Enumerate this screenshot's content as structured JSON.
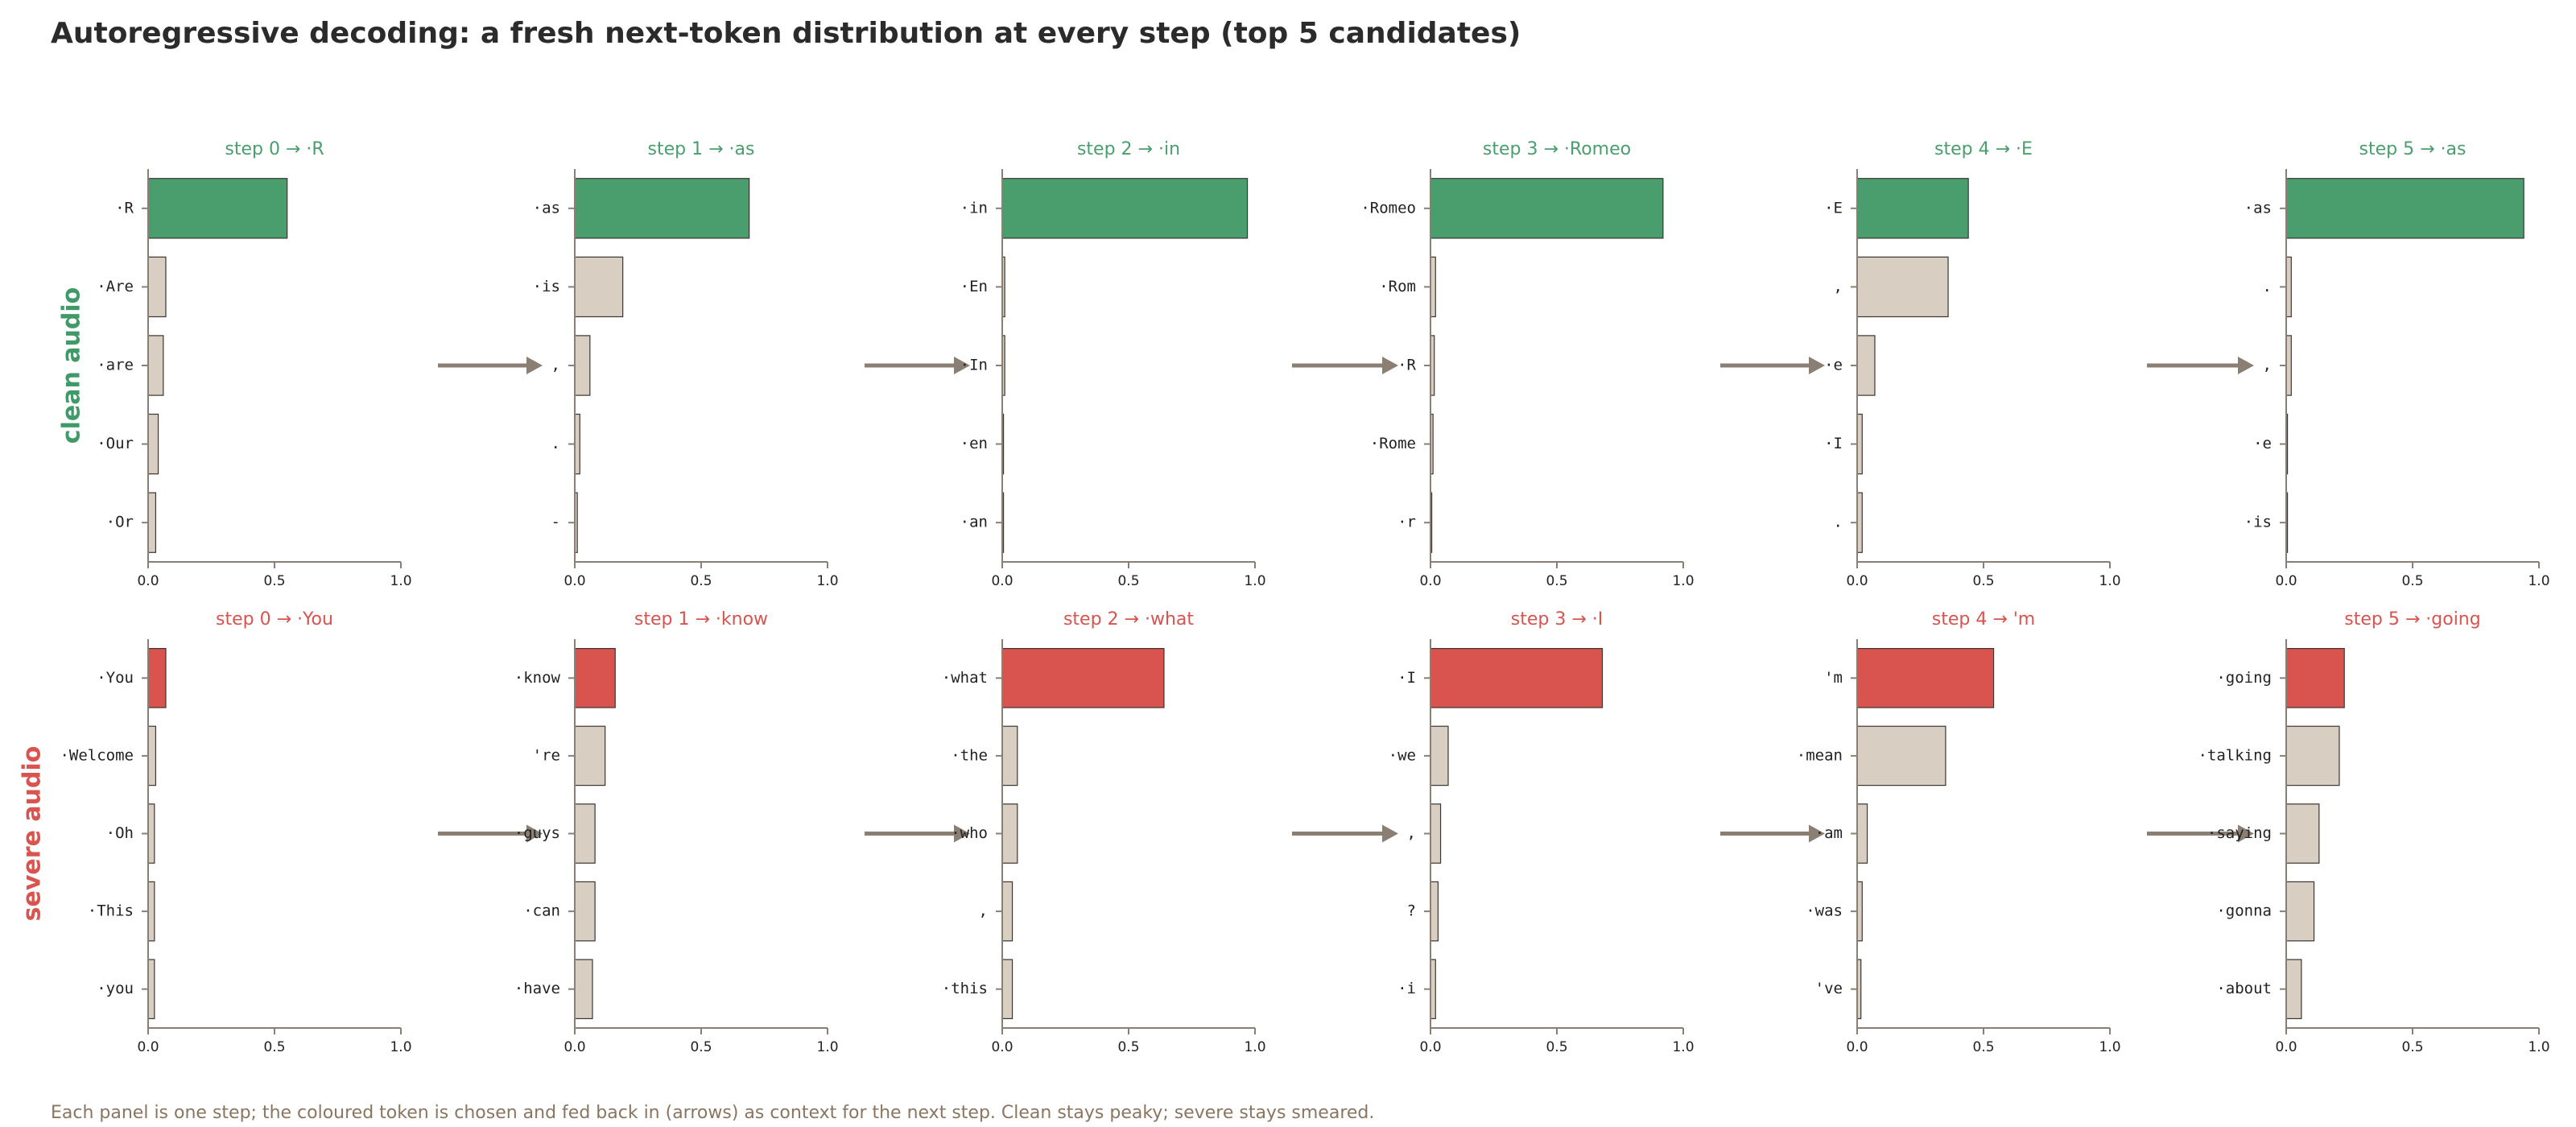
{
  "title": "Autoregressive decoding: a fresh next-token distribution at every step (top 5 candidates)",
  "footnote": "Each panel is one step; the coloured token is chosen and fed back in (arrows) as context for the next step. Clean stays peaky; severe stays smeared.",
  "rows": [
    {
      "label": "clean audio",
      "color": "#3f9a68"
    },
    {
      "label": "severe audio",
      "color": "#d9534f"
    }
  ],
  "chart_data": [
    {
      "type": "barh",
      "title": "step 0  → ·R",
      "categories": [
        "·R",
        "·Are",
        "·are",
        "·Our",
        "·Or"
      ],
      "values": [
        0.55,
        0.07,
        0.06,
        0.04,
        0.03
      ],
      "highlight_color": "#4a9e6e",
      "color": "#d8cfc2",
      "xlim": [
        0,
        1
      ],
      "xticks": [
        {
          "value": 0,
          "label": "0.0"
        },
        {
          "value": 0.5,
          "label": "0.5"
        },
        {
          "value": 1,
          "label": "1.0"
        }
      ]
    },
    {
      "type": "barh",
      "title": "step 1  → ·as",
      "categories": [
        "·as",
        "·is",
        ",",
        ".",
        "-"
      ],
      "values": [
        0.69,
        0.19,
        0.06,
        0.02,
        0.01
      ],
      "highlight_color": "#4a9e6e",
      "color": "#d8cfc2",
      "xlim": [
        0,
        1
      ],
      "xticks": [
        {
          "value": 0,
          "label": "0.0"
        },
        {
          "value": 0.5,
          "label": "0.5"
        },
        {
          "value": 1,
          "label": "1.0"
        }
      ]
    },
    {
      "type": "barh",
      "title": "step 2  → ·in",
      "categories": [
        "·in",
        "·En",
        "·In",
        "·en",
        "·an"
      ],
      "values": [
        0.97,
        0.01,
        0.01,
        0.005,
        0.005
      ],
      "highlight_color": "#4a9e6e",
      "color": "#d8cfc2",
      "xlim": [
        0,
        1
      ],
      "xticks": [
        {
          "value": 0,
          "label": "0.0"
        },
        {
          "value": 0.5,
          "label": "0.5"
        },
        {
          "value": 1,
          "label": "1.0"
        }
      ]
    },
    {
      "type": "barh",
      "title": "step 3  → ·Romeo",
      "categories": [
        "·Romeo",
        "·Rom",
        "·R",
        "·Rome",
        "·r"
      ],
      "values": [
        0.92,
        0.02,
        0.015,
        0.01,
        0.005
      ],
      "highlight_color": "#4a9e6e",
      "color": "#d8cfc2",
      "xlim": [
        0,
        1
      ],
      "xticks": [
        {
          "value": 0,
          "label": "0.0"
        },
        {
          "value": 0.5,
          "label": "0.5"
        },
        {
          "value": 1,
          "label": "1.0"
        }
      ]
    },
    {
      "type": "barh",
      "title": "step 4  → ·E",
      "categories": [
        "·E",
        ",",
        "·e",
        "·I",
        "."
      ],
      "values": [
        0.44,
        0.36,
        0.07,
        0.02,
        0.02
      ],
      "highlight_color": "#4a9e6e",
      "color": "#d8cfc2",
      "xlim": [
        0,
        1
      ],
      "xticks": [
        {
          "value": 0,
          "label": "0.0"
        },
        {
          "value": 0.5,
          "label": "0.5"
        },
        {
          "value": 1,
          "label": "1.0"
        }
      ]
    },
    {
      "type": "barh",
      "title": "step 5  → ·as",
      "categories": [
        "·as",
        ".",
        ",",
        "·e",
        "·is"
      ],
      "values": [
        0.94,
        0.02,
        0.02,
        0.005,
        0.005
      ],
      "highlight_color": "#4a9e6e",
      "color": "#d8cfc2",
      "xlim": [
        0,
        1
      ],
      "xticks": [
        {
          "value": 0,
          "label": "0.0"
        },
        {
          "value": 0.5,
          "label": "0.5"
        },
        {
          "value": 1,
          "label": "1.0"
        }
      ]
    },
    {
      "type": "barh",
      "title": "step 0  → ·You",
      "categories": [
        "·You",
        "·Welcome",
        "·Oh",
        "·This",
        "·you"
      ],
      "values": [
        0.07,
        0.03,
        0.025,
        0.025,
        0.025
      ],
      "highlight_color": "#d9534f",
      "color": "#d8cfc2",
      "xlim": [
        0,
        1
      ],
      "xticks": [
        {
          "value": 0,
          "label": "0.0"
        },
        {
          "value": 0.5,
          "label": "0.5"
        },
        {
          "value": 1,
          "label": "1.0"
        }
      ]
    },
    {
      "type": "barh",
      "title": "step 1  → ·know",
      "categories": [
        "·know",
        "'re",
        "·guys",
        "·can",
        "·have"
      ],
      "values": [
        0.16,
        0.12,
        0.08,
        0.08,
        0.07
      ],
      "highlight_color": "#d9534f",
      "color": "#d8cfc2",
      "xlim": [
        0,
        1
      ],
      "xticks": [
        {
          "value": 0,
          "label": "0.0"
        },
        {
          "value": 0.5,
          "label": "0.5"
        },
        {
          "value": 1,
          "label": "1.0"
        }
      ]
    },
    {
      "type": "barh",
      "title": "step 2  → ·what",
      "categories": [
        "·what",
        "·the",
        "·who",
        ",",
        "·this"
      ],
      "values": [
        0.64,
        0.06,
        0.06,
        0.04,
        0.04
      ],
      "highlight_color": "#d9534f",
      "color": "#d8cfc2",
      "xlim": [
        0,
        1
      ],
      "xticks": [
        {
          "value": 0,
          "label": "0.0"
        },
        {
          "value": 0.5,
          "label": "0.5"
        },
        {
          "value": 1,
          "label": "1.0"
        }
      ]
    },
    {
      "type": "barh",
      "title": "step 3  → ·I",
      "categories": [
        "·I",
        "·we",
        ",",
        "?",
        "·i"
      ],
      "values": [
        0.68,
        0.07,
        0.04,
        0.03,
        0.02
      ],
      "highlight_color": "#d9534f",
      "color": "#d8cfc2",
      "xlim": [
        0,
        1
      ],
      "xticks": [
        {
          "value": 0,
          "label": "0.0"
        },
        {
          "value": 0.5,
          "label": "0.5"
        },
        {
          "value": 1,
          "label": "1.0"
        }
      ]
    },
    {
      "type": "barh",
      "title": "step 4  → 'm",
      "categories": [
        "'m",
        "·mean",
        "·am",
        "·was",
        "'ve"
      ],
      "values": [
        0.54,
        0.35,
        0.04,
        0.02,
        0.015
      ],
      "highlight_color": "#d9534f",
      "color": "#d8cfc2",
      "xlim": [
        0,
        1
      ],
      "xticks": [
        {
          "value": 0,
          "label": "0.0"
        },
        {
          "value": 0.5,
          "label": "0.5"
        },
        {
          "value": 1,
          "label": "1.0"
        }
      ]
    },
    {
      "type": "barh",
      "title": "step 5  → ·going",
      "categories": [
        "·going",
        "·talking",
        "·saying",
        "·gonna",
        "·about"
      ],
      "values": [
        0.23,
        0.21,
        0.13,
        0.11,
        0.06
      ],
      "highlight_color": "#d9534f",
      "color": "#d8cfc2",
      "xlim": [
        0,
        1
      ],
      "xticks": [
        {
          "value": 0,
          "label": "0.0"
        },
        {
          "value": 0.5,
          "label": "0.5"
        },
        {
          "value": 1,
          "label": "1.0"
        }
      ]
    }
  ]
}
